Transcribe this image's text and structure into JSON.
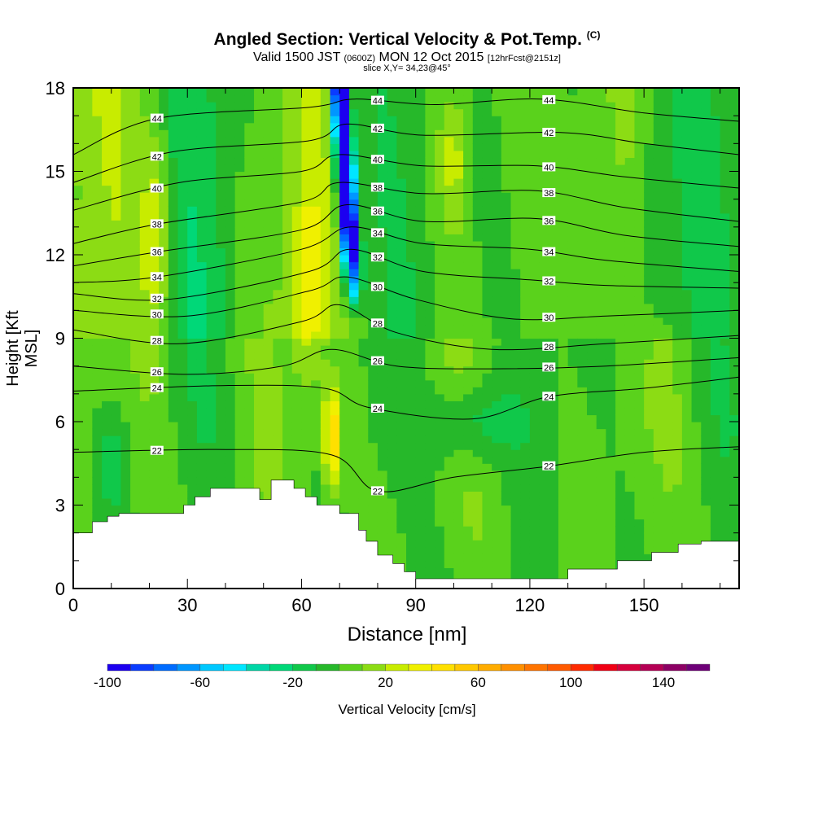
{
  "header": {
    "title": "Angled Section: Vertical Velocity & Pot.Temp.",
    "title_tag": "(C)",
    "subtitle_main": "Valid 1500 JST",
    "subtitle_utc": "(0600Z)",
    "subtitle_date": "MON 12 Oct 2015",
    "subtitle_fcst": "[12hrFcst@2151z]",
    "slice": "slice X,Y= 34,23@45°"
  },
  "chart_data": {
    "type": "heatmap",
    "title": "Angled Section: Vertical Velocity & Pot.Temp.",
    "xlabel": "Distance [nm]",
    "ylabel": "Height [Kft MSL]",
    "xlim": [
      0,
      175
    ],
    "ylim": [
      0,
      18
    ],
    "x_ticks": [
      "0",
      "30",
      "60",
      "90",
      "120",
      "150"
    ],
    "x_tick_values": [
      0,
      30,
      60,
      90,
      120,
      150
    ],
    "y_ticks": [
      "0",
      "3",
      "6",
      "9",
      "12",
      "15",
      "18"
    ],
    "y_tick_values": [
      0,
      3,
      6,
      9,
      12,
      15,
      18
    ],
    "colorbar": {
      "label": "Vertical Velocity [cm/s]",
      "tick_labels": [
        "-100",
        "-60",
        "-20",
        "20",
        "60",
        "100",
        "140"
      ],
      "tick_values": [
        -100,
        -60,
        -20,
        20,
        60,
        100,
        140
      ],
      "min": -100,
      "max": 160,
      "step": 10,
      "colors": [
        "#1c00f0",
        "#0a3cff",
        "#006cff",
        "#0096ff",
        "#00c8ff",
        "#00e6ff",
        "#00d6a6",
        "#00d878",
        "#10c84a",
        "#26b82a",
        "#5ad21c",
        "#8cdc14",
        "#c8ec00",
        "#f0f000",
        "#ffe000",
        "#ffc800",
        "#ffac00",
        "#ff9000",
        "#ff7400",
        "#ff5a00",
        "#ff2a00",
        "#f00014",
        "#d6003c",
        "#b40055",
        "#8c0064",
        "#6e0078"
      ]
    },
    "terrain_kft": [
      [
        0,
        2.0
      ],
      [
        5,
        2.0
      ],
      [
        5,
        2.4
      ],
      [
        9,
        2.4
      ],
      [
        9,
        2.6
      ],
      [
        12,
        2.6
      ],
      [
        12,
        2.7
      ],
      [
        29,
        2.7
      ],
      [
        29,
        3.0
      ],
      [
        32,
        3.0
      ],
      [
        32,
        3.3
      ],
      [
        36,
        3.3
      ],
      [
        36,
        3.6
      ],
      [
        49,
        3.6
      ],
      [
        49,
        3.2
      ],
      [
        52,
        3.2
      ],
      [
        52,
        3.9
      ],
      [
        58,
        3.9
      ],
      [
        58,
        3.6
      ],
      [
        61,
        3.6
      ],
      [
        61,
        3.3
      ],
      [
        64,
        3.3
      ],
      [
        64,
        3.0
      ],
      [
        70,
        3.0
      ],
      [
        70,
        2.7
      ],
      [
        75,
        2.7
      ],
      [
        75,
        2.1
      ],
      [
        77,
        2.1
      ],
      [
        77,
        1.7
      ],
      [
        80,
        1.7
      ],
      [
        80,
        1.2
      ],
      [
        84,
        1.2
      ],
      [
        84,
        0.9
      ],
      [
        87,
        0.9
      ],
      [
        87,
        0.6
      ],
      [
        90,
        0.6
      ],
      [
        90,
        0.35
      ],
      [
        130,
        0.35
      ],
      [
        130,
        0.7
      ],
      [
        143,
        0.7
      ],
      [
        143,
        1.0
      ],
      [
        152,
        1.0
      ],
      [
        152,
        1.3
      ],
      [
        159,
        1.3
      ],
      [
        159,
        1.6
      ],
      [
        165,
        1.6
      ],
      [
        165,
        1.7
      ],
      [
        175,
        1.7
      ]
    ],
    "isentropes_C": [
      {
        "label": "22",
        "levels_kft": [
          [
            0,
            4.9
          ],
          [
            40,
            5.0
          ],
          [
            68,
            4.8
          ],
          [
            80,
            3.5
          ],
          [
            100,
            4.0
          ],
          [
            125,
            4.4
          ],
          [
            150,
            4.9
          ],
          [
            175,
            5.1
          ]
        ]
      },
      {
        "label": "24",
        "levels_kft": [
          [
            0,
            7.1
          ],
          [
            40,
            7.3
          ],
          [
            66,
            7.2
          ],
          [
            78,
            6.5
          ],
          [
            105,
            6.1
          ],
          [
            125,
            6.9
          ],
          [
            150,
            7.2
          ],
          [
            175,
            7.6
          ]
        ]
      },
      {
        "label": "26",
        "levels_kft": [
          [
            0,
            8.0
          ],
          [
            30,
            7.7
          ],
          [
            55,
            8.0
          ],
          [
            68,
            8.6
          ],
          [
            85,
            8.0
          ],
          [
            110,
            7.9
          ],
          [
            140,
            8.0
          ],
          [
            175,
            8.3
          ]
        ]
      },
      {
        "label": "28",
        "levels_kft": [
          [
            0,
            9.3
          ],
          [
            28,
            8.8
          ],
          [
            60,
            9.6
          ],
          [
            70,
            10.2
          ],
          [
            85,
            9.2
          ],
          [
            110,
            8.6
          ],
          [
            140,
            8.8
          ],
          [
            175,
            9.1
          ]
        ]
      },
      {
        "label": "30",
        "levels_kft": [
          [
            0,
            10.0
          ],
          [
            30,
            9.8
          ],
          [
            62,
            10.7
          ],
          [
            72,
            11.2
          ],
          [
            90,
            10.4
          ],
          [
            115,
            9.7
          ],
          [
            140,
            9.8
          ],
          [
            175,
            10.0
          ]
        ]
      },
      {
        "label": "32",
        "levels_kft": [
          [
            0,
            10.6
          ],
          [
            25,
            10.4
          ],
          [
            62,
            11.4
          ],
          [
            73,
            12.2
          ],
          [
            92,
            11.4
          ],
          [
            120,
            11.1
          ],
          [
            140,
            10.9
          ],
          [
            175,
            10.8
          ]
        ]
      },
      {
        "label": "34",
        "levels_kft": [
          [
            0,
            11.0
          ],
          [
            22,
            11.2
          ],
          [
            60,
            12.2
          ],
          [
            73,
            13.0
          ],
          [
            92,
            12.4
          ],
          [
            120,
            12.2
          ],
          [
            140,
            11.8
          ],
          [
            175,
            11.4
          ]
        ]
      },
      {
        "label": "36",
        "levels_kft": [
          [
            0,
            11.6
          ],
          [
            22,
            12.1
          ],
          [
            60,
            12.9
          ],
          [
            72,
            13.8
          ],
          [
            92,
            13.2
          ],
          [
            122,
            13.3
          ],
          [
            145,
            12.7
          ],
          [
            175,
            12.3
          ]
        ]
      },
      {
        "label": "38",
        "levels_kft": [
          [
            0,
            12.4
          ],
          [
            22,
            13.1
          ],
          [
            60,
            13.9
          ],
          [
            70,
            14.6
          ],
          [
            92,
            14.2
          ],
          [
            122,
            14.3
          ],
          [
            145,
            13.7
          ],
          [
            175,
            13.2
          ]
        ]
      },
      {
        "label": "40",
        "levels_kft": [
          [
            0,
            13.6
          ],
          [
            28,
            14.6
          ],
          [
            60,
            15.0
          ],
          [
            70,
            15.6
          ],
          [
            92,
            15.2
          ],
          [
            122,
            15.2
          ],
          [
            145,
            14.8
          ],
          [
            175,
            14.4
          ]
        ]
      },
      {
        "label": "42",
        "levels_kft": [
          [
            0,
            14.6
          ],
          [
            26,
            15.7
          ],
          [
            62,
            16.1
          ],
          [
            72,
            16.7
          ],
          [
            92,
            16.3
          ],
          [
            128,
            16.4
          ],
          [
            150,
            16.0
          ],
          [
            175,
            15.6
          ]
        ]
      },
      {
        "label": "44",
        "levels_kft": [
          [
            0,
            15.6
          ],
          [
            22,
            16.9
          ],
          [
            62,
            17.3
          ],
          [
            74,
            17.6
          ],
          [
            95,
            17.4
          ],
          [
            123,
            17.6
          ],
          [
            150,
            17.1
          ],
          [
            175,
            16.8
          ]
        ]
      }
    ]
  }
}
